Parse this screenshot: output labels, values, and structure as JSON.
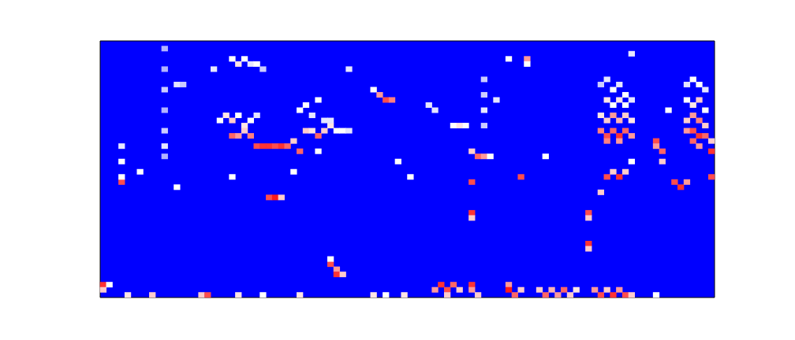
{
  "chart_data": {
    "type": "heatmap",
    "tick_labels": false,
    "grid": false,
    "xlim": [
      0,
      100
    ],
    "ylim": [
      0,
      50
    ],
    "color_range": [
      0,
      1
    ],
    "cells": [
      [
        0,
        2,
        0.9
      ],
      [
        0,
        1,
        0.6
      ],
      [
        1,
        2,
        0.5
      ],
      [
        4,
        0,
        0.55
      ],
      [
        8,
        0,
        0.6
      ],
      [
        16,
        0,
        0.6
      ],
      [
        17,
        0,
        0.85
      ],
      [
        22,
        0,
        0.55
      ],
      [
        26,
        0,
        0.5
      ],
      [
        32,
        0,
        0.55
      ],
      [
        37,
        6,
        0.85
      ],
      [
        37,
        7,
        0.5
      ],
      [
        38,
        5,
        0.7
      ],
      [
        38,
        4,
        0.9
      ],
      [
        39,
        4,
        0.6
      ],
      [
        44,
        0,
        0.55
      ],
      [
        46,
        0,
        0.5
      ],
      [
        49,
        0,
        0.55
      ],
      [
        54,
        1,
        0.7
      ],
      [
        55,
        2,
        0.9
      ],
      [
        56,
        1,
        0.85
      ],
      [
        56,
        0,
        0.6
      ],
      [
        57,
        2,
        0.8
      ],
      [
        58,
        1,
        0.6
      ],
      [
        60,
        2,
        0.9
      ],
      [
        60,
        1,
        0.7
      ],
      [
        61,
        0,
        0.6
      ],
      [
        66,
        2,
        0.7
      ],
      [
        66,
        1,
        0.95
      ],
      [
        67,
        0,
        0.8
      ],
      [
        68,
        1,
        0.6
      ],
      [
        71,
        1,
        0.6
      ],
      [
        72,
        0,
        0.8
      ],
      [
        73,
        1,
        0.65
      ],
      [
        74,
        0,
        0.7
      ],
      [
        75,
        1,
        0.8
      ],
      [
        76,
        0,
        0.6
      ],
      [
        77,
        1,
        0.55
      ],
      [
        80,
        1,
        0.7
      ],
      [
        81,
        0,
        0.85
      ],
      [
        82,
        1,
        0.6
      ],
      [
        83,
        0,
        0.9
      ],
      [
        84,
        1,
        0.7
      ],
      [
        85,
        0,
        0.85
      ],
      [
        86,
        0,
        0.6
      ],
      [
        90,
        0,
        0.5
      ],
      [
        3,
        29,
        0.45
      ],
      [
        3,
        26,
        0.5
      ],
      [
        3,
        22,
        0.85
      ],
      [
        3,
        23,
        0.5
      ],
      [
        6,
        24,
        0.5
      ],
      [
        10,
        48,
        0.35
      ],
      [
        10,
        44,
        0.35
      ],
      [
        10,
        40,
        0.4
      ],
      [
        10,
        36,
        0.35
      ],
      [
        10,
        32,
        0.4
      ],
      [
        10,
        29,
        0.45
      ],
      [
        10,
        27,
        0.35
      ],
      [
        12,
        21,
        0.5
      ],
      [
        12,
        41,
        0.45
      ],
      [
        13,
        41,
        0.4
      ],
      [
        18,
        44,
        0.45
      ],
      [
        21,
        46,
        0.5
      ],
      [
        22,
        45,
        0.55
      ],
      [
        23,
        46,
        0.5
      ],
      [
        24,
        45,
        0.45
      ],
      [
        25,
        45,
        0.5
      ],
      [
        26,
        44,
        0.4
      ],
      [
        19,
        34,
        0.5
      ],
      [
        20,
        35,
        0.55
      ],
      [
        21,
        34,
        0.6
      ],
      [
        22,
        35,
        0.5
      ],
      [
        23,
        33,
        0.55
      ],
      [
        24,
        34,
        0.5
      ],
      [
        25,
        35,
        0.45
      ],
      [
        21,
        31,
        0.8
      ],
      [
        22,
        31,
        0.7
      ],
      [
        23,
        32,
        0.6
      ],
      [
        24,
        31,
        0.75
      ],
      [
        25,
        29,
        0.85
      ],
      [
        26,
        29,
        0.9
      ],
      [
        27,
        29,
        0.9
      ],
      [
        28,
        29,
        0.85
      ],
      [
        29,
        29,
        0.9
      ],
      [
        30,
        29,
        0.8
      ],
      [
        31,
        30,
        0.6
      ],
      [
        21,
        23,
        0.5
      ],
      [
        27,
        19,
        0.85
      ],
      [
        28,
        19,
        0.95
      ],
      [
        29,
        19,
        0.6
      ],
      [
        31,
        24,
        0.5
      ],
      [
        32,
        28,
        0.8
      ],
      [
        32,
        36,
        0.5
      ],
      [
        33,
        37,
        0.5
      ],
      [
        34,
        35,
        0.45
      ],
      [
        35,
        38,
        0.5
      ],
      [
        33,
        32,
        0.6
      ],
      [
        34,
        32,
        0.55
      ],
      [
        35,
        31,
        0.8
      ],
      [
        36,
        32,
        0.6
      ],
      [
        37,
        33,
        0.55
      ],
      [
        38,
        32,
        0.5
      ],
      [
        39,
        32,
        0.5
      ],
      [
        40,
        32,
        0.45
      ],
      [
        35,
        28,
        0.5
      ],
      [
        36,
        34,
        0.45
      ],
      [
        37,
        34,
        0.45
      ],
      [
        40,
        44,
        0.45
      ],
      [
        44,
        40,
        0.5
      ],
      [
        45,
        39,
        0.7
      ],
      [
        46,
        38,
        0.85
      ],
      [
        47,
        38,
        0.75
      ],
      [
        48,
        26,
        0.5
      ],
      [
        50,
        23,
        0.5
      ],
      [
        53,
        37,
        0.45
      ],
      [
        54,
        36,
        0.45
      ],
      [
        57,
        33,
        0.5
      ],
      [
        58,
        33,
        0.55
      ],
      [
        59,
        33,
        0.5
      ],
      [
        60,
        28,
        0.6
      ],
      [
        61,
        27,
        0.8
      ],
      [
        62,
        27,
        0.7
      ],
      [
        63,
        27,
        0.5
      ],
      [
        60,
        22,
        0.85
      ],
      [
        60,
        16,
        0.9
      ],
      [
        60,
        15,
        0.6
      ],
      [
        62,
        42,
        0.4
      ],
      [
        62,
        39,
        0.4
      ],
      [
        62,
        36,
        0.45
      ],
      [
        62,
        33,
        0.4
      ],
      [
        64,
        38,
        0.45
      ],
      [
        66,
        46,
        0.5
      ],
      [
        69,
        46,
        0.7
      ],
      [
        69,
        45,
        0.5
      ],
      [
        68,
        23,
        0.85
      ],
      [
        72,
        27,
        0.5
      ],
      [
        79,
        16,
        0.85
      ],
      [
        79,
        15,
        0.6
      ],
      [
        79,
        10,
        0.9
      ],
      [
        79,
        9,
        0.6
      ],
      [
        81,
        20,
        0.6
      ],
      [
        81,
        41,
        0.4
      ],
      [
        82,
        42,
        0.45
      ],
      [
        83,
        40,
        0.5
      ],
      [
        84,
        41,
        0.45
      ],
      [
        85,
        39,
        0.5
      ],
      [
        82,
        38,
        0.55
      ],
      [
        83,
        37,
        0.5
      ],
      [
        84,
        38,
        0.55
      ],
      [
        85,
        37,
        0.5
      ],
      [
        86,
        38,
        0.45
      ],
      [
        81,
        35,
        0.55
      ],
      [
        82,
        34,
        0.6
      ],
      [
        83,
        35,
        0.7
      ],
      [
        84,
        34,
        0.65
      ],
      [
        85,
        35,
        0.6
      ],
      [
        86,
        34,
        0.55
      ],
      [
        81,
        32,
        0.75
      ],
      [
        82,
        31,
        0.85
      ],
      [
        83,
        32,
        0.8
      ],
      [
        84,
        31,
        0.9
      ],
      [
        85,
        32,
        0.8
      ],
      [
        86,
        31,
        0.7
      ],
      [
        82,
        30,
        0.75
      ],
      [
        84,
        30,
        0.7
      ],
      [
        82,
        23,
        0.85
      ],
      [
        83,
        24,
        0.6
      ],
      [
        84,
        23,
        0.9
      ],
      [
        85,
        24,
        0.6
      ],
      [
        86,
        47,
        0.45
      ],
      [
        86,
        26,
        0.5
      ],
      [
        90,
        30,
        0.85
      ],
      [
        90,
        29,
        0.7
      ],
      [
        91,
        28,
        0.8
      ],
      [
        91,
        26,
        0.6
      ],
      [
        92,
        36,
        0.5
      ],
      [
        93,
        22,
        0.85
      ],
      [
        94,
        21,
        0.9
      ],
      [
        95,
        22,
        0.7
      ],
      [
        95,
        41,
        0.45
      ],
      [
        96,
        42,
        0.5
      ],
      [
        97,
        41,
        0.5
      ],
      [
        98,
        40,
        0.45
      ],
      [
        95,
        38,
        0.5
      ],
      [
        96,
        37,
        0.55
      ],
      [
        97,
        38,
        0.6
      ],
      [
        98,
        36,
        0.5
      ],
      [
        95,
        34,
        0.6
      ],
      [
        96,
        35,
        0.7
      ],
      [
        97,
        34,
        0.75
      ],
      [
        98,
        33,
        0.6
      ],
      [
        95,
        32,
        0.7
      ],
      [
        96,
        32,
        0.85
      ],
      [
        97,
        31,
        0.9
      ],
      [
        98,
        31,
        0.8
      ],
      [
        96,
        30,
        0.8
      ],
      [
        97,
        29,
        0.7
      ],
      [
        99,
        28,
        0.9
      ],
      [
        99,
        23,
        0.85
      ],
      [
        99,
        30,
        0.6
      ]
    ]
  }
}
